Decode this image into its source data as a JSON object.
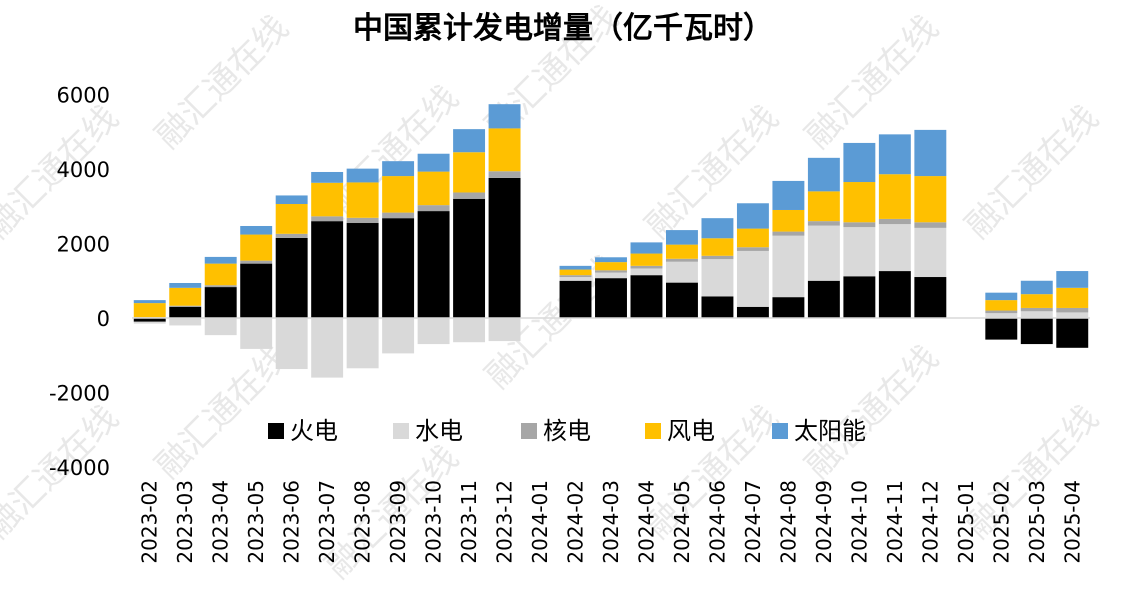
{
  "chart_data": {
    "type": "bar",
    "stacked": true,
    "title": "中国累计发电增量（亿千瓦时）",
    "xlabel": "",
    "ylabel": "",
    "ylim": [
      -4000,
      6000
    ],
    "yticks": [
      6000,
      4000,
      2000,
      0,
      -2000,
      -4000
    ],
    "legend_position": "middle-center",
    "watermark_text": "融汇通在线",
    "categories": [
      "2023-02",
      "2023-03",
      "2023-04",
      "2023-05",
      "2023-06",
      "2023-07",
      "2023-08",
      "2023-09",
      "2023-10",
      "2023-11",
      "2023-12",
      "2024-01",
      "2024-02",
      "2024-03",
      "2024-04",
      "2024-05",
      "2024-06",
      "2024-07",
      "2024-08",
      "2024-09",
      "2024-10",
      "2024-11",
      "2024-12",
      "2025-01",
      "2025-02",
      "2025-03",
      "2025-04"
    ],
    "series": [
      {
        "name": "火电",
        "color": "#000000",
        "values": [
          -100,
          300,
          830,
          1460,
          2150,
          2600,
          2550,
          2680,
          2870,
          3200,
          3760,
          null,
          1000,
          1070,
          1150,
          950,
          580,
          300,
          560,
          1000,
          1120,
          1260,
          1100,
          null,
          -580,
          -700,
          -800
        ]
      },
      {
        "name": "水电",
        "color": "#d9d9d9",
        "values": [
          -50,
          -200,
          -460,
          -830,
          -1370,
          -1600,
          -1350,
          -950,
          -700,
          -650,
          -620,
          null,
          100,
          150,
          180,
          560,
          1000,
          1500,
          1650,
          1480,
          1320,
          1260,
          1320,
          null,
          130,
          180,
          150
        ]
      },
      {
        "name": "核电",
        "color": "#a6a6a6",
        "values": [
          20,
          30,
          50,
          80,
          110,
          130,
          140,
          150,
          160,
          170,
          180,
          null,
          50,
          60,
          70,
          80,
          90,
          100,
          110,
          120,
          130,
          140,
          150,
          null,
          70,
          90,
          120
        ]
      },
      {
        "name": "风电",
        "color": "#ffc000",
        "values": [
          380,
          480,
          580,
          700,
          800,
          900,
          950,
          980,
          900,
          1080,
          1150,
          null,
          150,
          220,
          330,
          380,
          470,
          500,
          580,
          800,
          1080,
          1200,
          1240,
          null,
          280,
          370,
          540
        ]
      },
      {
        "name": "太阳能",
        "color": "#5b9bd5",
        "values": [
          80,
          130,
          180,
          230,
          230,
          290,
          370,
          400,
          480,
          620,
          650,
          null,
          100,
          130,
          300,
          390,
          540,
          680,
          780,
          900,
          1050,
          1070,
          1240,
          null,
          200,
          360,
          450
        ]
      }
    ]
  }
}
